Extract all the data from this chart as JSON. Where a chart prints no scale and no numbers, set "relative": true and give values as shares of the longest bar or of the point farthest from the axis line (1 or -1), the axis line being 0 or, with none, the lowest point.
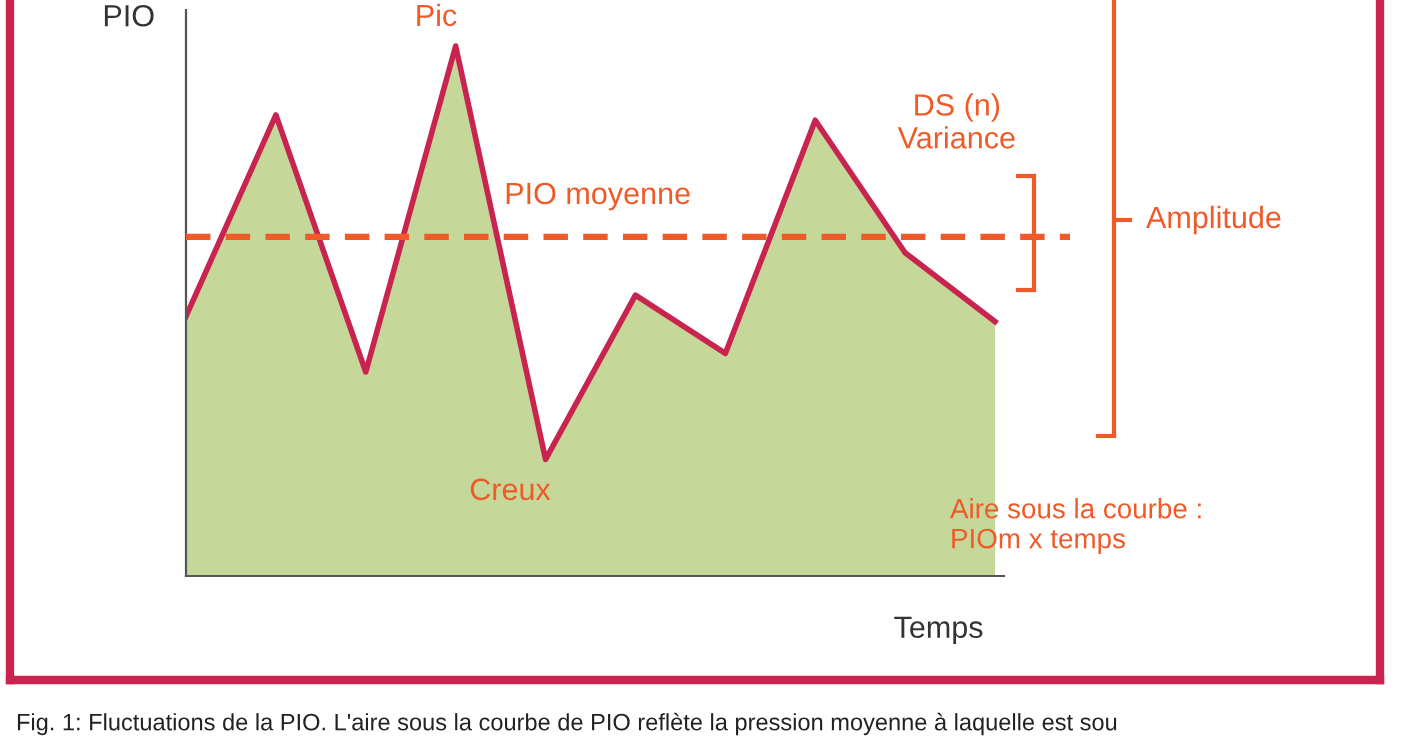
{
  "chart_data": {
    "type": "area",
    "relative": true,
    "ylabel": "PIO",
    "xlabel": "Temps",
    "categories": [
      null,
      null,
      null,
      null,
      null,
      null,
      null,
      null,
      null,
      null
    ],
    "series": [
      {
        "color": "#c5d89a",
        "values": [
          0.49,
          0.87,
          0.385,
          1,
          0.22,
          0.53,
          0.42,
          0.86,
          0.61,
          0.48
        ]
      },
      {
        "type": "line",
        "color": "#c8244f",
        "values": [
          0.49,
          0.87,
          0.385,
          1,
          0.22,
          0.53,
          0.42,
          0.86,
          0.61,
          0.48
        ]
      }
    ],
    "ref_lines": [
      {
        "axis": "y",
        "value": 0.64,
        "label": "PIO moyenne",
        "color": "#ef5a28",
        "line_style": "dashed"
      }
    ],
    "annotations": [
      "Pic",
      "Creux",
      "DS (n)\nVariance",
      "Amplitude",
      "Aire sous la courbe :\nPIOm x temps",
      "Fig. 1: Fluctuations de la PIO. L'aire sous la courbe de PIO reflète la pression moyenne à laquelle est sou"
    ],
    "legend": false
  }
}
